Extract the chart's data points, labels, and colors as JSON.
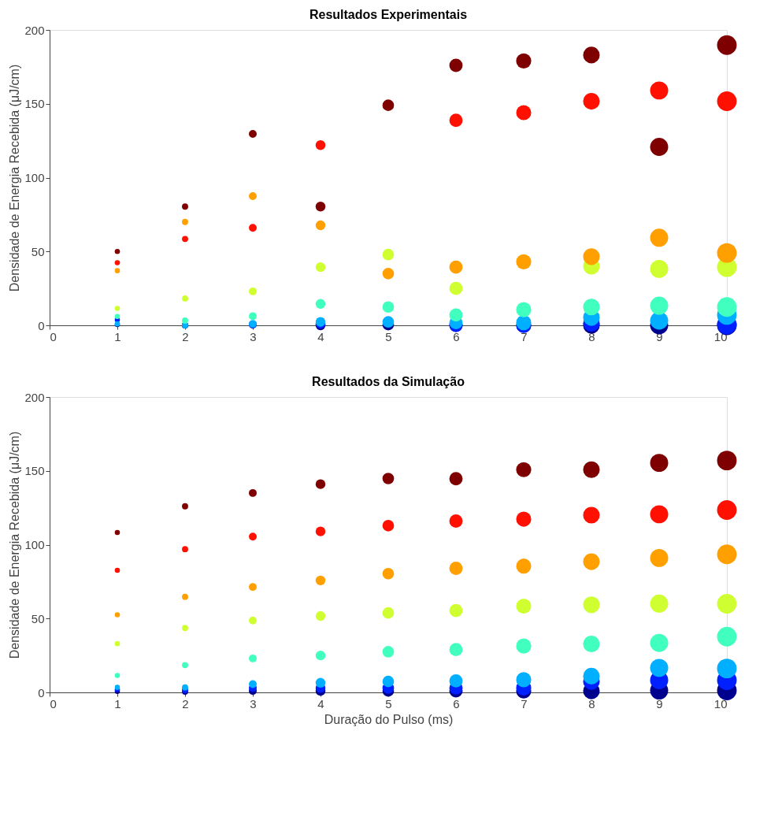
{
  "chart_data": [
    {
      "type": "bubble",
      "title": "Resultados Experimentais",
      "ylabel": "Densidade de Energia Recebida (μJ/cm)",
      "marker": "circle",
      "grid": false,
      "legend": false,
      "x": [
        1,
        2,
        3,
        4,
        5,
        6,
        7,
        8,
        9,
        10
      ],
      "xlim": [
        0,
        10
      ],
      "xticks": [
        0,
        1,
        2,
        3,
        4,
        5,
        6,
        7,
        8,
        9,
        10
      ],
      "ylim": [
        0,
        200
      ],
      "yticks": [
        0,
        50,
        100,
        150,
        200
      ],
      "series": [
        {
          "color": "#00008f",
          "values": [
            0.5,
            0,
            0.5,
            0,
            0.5,
            0,
            0,
            0,
            0,
            0
          ],
          "sizes": [
            0.07,
            0.1,
            0.16,
            0.25,
            0.35,
            0.46,
            0.59,
            0.72,
            0.85,
            1
          ]
        },
        {
          "color": "#0020ff",
          "values": [
            3.7,
            0,
            0.5,
            1,
            null,
            0,
            0,
            1.4,
            null,
            0.5
          ],
          "sizes": [
            0.07,
            0.1,
            0.16,
            0.25,
            null,
            0.46,
            0.59,
            0.72,
            null,
            1
          ]
        },
        {
          "color": "#00afff",
          "values": [
            1,
            0,
            1,
            2.3,
            2.3,
            1.8,
            1.8,
            5.3,
            3.2,
            7
          ],
          "sizes": [
            0.07,
            0.1,
            0.16,
            0.25,
            0.35,
            0.46,
            0.59,
            0.72,
            0.85,
            1
          ]
        },
        {
          "color": "#40ffbf",
          "values": [
            6,
            3.2,
            6.2,
            14.5,
            12.4,
            7,
            10.6,
            12.4,
            13.3,
            12.4
          ],
          "sizes": [
            0.07,
            0.1,
            0.16,
            0.25,
            0.35,
            0.46,
            0.59,
            0.72,
            0.85,
            1
          ]
        },
        {
          "color": "#cfff30",
          "values": [
            11.5,
            18.2,
            23,
            39.4,
            47.9,
            25,
            null,
            40,
            38.2,
            39.4
          ],
          "sizes": [
            0.07,
            0.1,
            0.16,
            0.25,
            0.35,
            0.46,
            null,
            0.72,
            0.85,
            1
          ]
        },
        {
          "color": "#ff9f00",
          "values": [
            37,
            70,
            87.5,
            67.7,
            35,
            39.4,
            43,
            46.5,
            59.3,
            49
          ],
          "sizes": [
            0.07,
            0.1,
            0.16,
            0.25,
            0.35,
            0.46,
            0.59,
            0.72,
            0.85,
            1
          ]
        },
        {
          "color": "#ff1000",
          "values": [
            42.4,
            58.5,
            66,
            122,
            null,
            138.8,
            144,
            151.7,
            159,
            151.7
          ],
          "sizes": [
            0.07,
            0.1,
            0.16,
            0.25,
            null,
            0.46,
            0.59,
            0.72,
            0.85,
            1
          ]
        },
        {
          "color": "#7f0000",
          "values": [
            50,
            80.4,
            129.6,
            80.4,
            149,
            176,
            179,
            183,
            120.8,
            189.7
          ],
          "sizes": [
            0.07,
            0.1,
            0.16,
            0.25,
            0.35,
            0.46,
            0.59,
            0.72,
            0.85,
            1
          ]
        }
      ]
    },
    {
      "type": "bubble",
      "title": "Resultados da Simulação",
      "xlabel": "Duração do Pulso (ms)",
      "ylabel": "Densidade de Energia Recebida (μJ/cm)",
      "marker": "circle",
      "grid": false,
      "legend": false,
      "x": [
        1,
        2,
        3,
        4,
        5,
        6,
        7,
        8,
        9,
        10
      ],
      "xlim": [
        0,
        10
      ],
      "xticks": [
        0,
        1,
        2,
        3,
        4,
        5,
        6,
        7,
        8,
        9,
        10
      ],
      "ylim": [
        0,
        200
      ],
      "yticks": [
        0,
        50,
        100,
        150,
        200
      ],
      "series": [
        {
          "color": "#00008f",
          "values": [
            0.7,
            0.5,
            1,
            1,
            1,
            1,
            1,
            1,
            1.3,
            1.3
          ],
          "sizes": [
            0.07,
            0.1,
            0.16,
            0.25,
            0.35,
            0.46,
            0.59,
            0.72,
            0.85,
            1
          ]
        },
        {
          "color": "#0020ff",
          "values": [
            2,
            1.6,
            3,
            3,
            3,
            3,
            3,
            7.4,
            8.3,
            8.3
          ],
          "sizes": [
            0.07,
            0.1,
            0.16,
            0.25,
            0.35,
            0.46,
            0.59,
            0.72,
            0.85,
            1
          ]
        },
        {
          "color": "#00afff",
          "values": [
            3.4,
            3.4,
            5.6,
            6.5,
            7.4,
            7.8,
            8.6,
            11,
            16.6,
            16.2
          ],
          "sizes": [
            0.07,
            0.1,
            0.16,
            0.25,
            0.35,
            0.46,
            0.59,
            0.72,
            0.85,
            1
          ]
        },
        {
          "color": "#40ffbf",
          "values": [
            11.5,
            18.5,
            23,
            25,
            27.5,
            29,
            31.4,
            32.8,
            33.5,
            37.7
          ],
          "sizes": [
            0.07,
            0.1,
            0.16,
            0.25,
            0.35,
            0.46,
            0.59,
            0.72,
            0.85,
            1
          ]
        },
        {
          "color": "#cfff30",
          "values": [
            33,
            43.6,
            48.7,
            51.7,
            53.8,
            55.4,
            58.4,
            59.3,
            60.1,
            60
          ],
          "sizes": [
            0.07,
            0.1,
            0.16,
            0.25,
            0.35,
            0.46,
            0.59,
            0.72,
            0.85,
            1
          ]
        },
        {
          "color": "#ff9f00",
          "values": [
            52.5,
            64.7,
            71.4,
            75.8,
            80.4,
            84,
            85.5,
            88.5,
            91,
            93.5
          ],
          "sizes": [
            0.07,
            0.1,
            0.16,
            0.25,
            0.35,
            0.46,
            0.59,
            0.72,
            0.85,
            1
          ]
        },
        {
          "color": "#ff1000",
          "values": [
            82.7,
            97,
            105.5,
            109,
            112.9,
            116,
            117.3,
            120,
            120.6,
            123.5
          ],
          "sizes": [
            0.07,
            0.1,
            0.16,
            0.25,
            0.35,
            0.46,
            0.59,
            0.72,
            0.85,
            1
          ]
        },
        {
          "color": "#7f0000",
          "values": [
            108.3,
            126,
            135,
            141,
            144.8,
            144.7,
            150.8,
            150.8,
            155.4,
            157
          ],
          "sizes": [
            0.07,
            0.1,
            0.16,
            0.25,
            0.35,
            0.46,
            0.59,
            0.72,
            0.85,
            1
          ]
        }
      ]
    }
  ]
}
